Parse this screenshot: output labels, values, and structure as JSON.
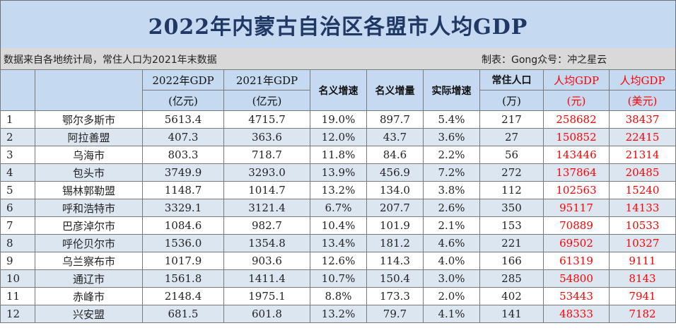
{
  "title": "2022年内蒙古自治区各盟市人均GDP",
  "source_note": "数据来自各地统计局，常住人口为2021年末数据",
  "credit": "制表：Gong众号：冲之星云",
  "headers": {
    "h_gdp2022_a": "2022年GDP",
    "h_gdp2022_b": "(亿元)",
    "h_gdp2021_a": "2021年GDP",
    "h_gdp2021_b": "(亿元)",
    "h_nominal_growth": "名义增速",
    "h_nominal_increase": "名义增量",
    "h_real_growth": "实际增速",
    "h_pop_a": "常住人口",
    "h_pop_b": "(万)",
    "h_pc_cny_a": "人均GDP",
    "h_pc_cny_b": "(元)",
    "h_pc_usd_a": "人均GDP",
    "h_pc_usd_b": "(美元)"
  },
  "rows": [
    [
      "1",
      "鄂尔多斯市",
      "5613.4",
      "4715.7",
      "19.0%",
      "897.7",
      "5.4%",
      "217",
      "258682",
      "38437"
    ],
    [
      "2",
      "阿拉善盟",
      "407.3",
      "363.6",
      "12.0%",
      "43.7",
      "3.6%",
      "27",
      "150852",
      "22415"
    ],
    [
      "3",
      "乌海市",
      "803.3",
      "718.7",
      "11.8%",
      "84.6",
      "2.2%",
      "56",
      "143446",
      "21314"
    ],
    [
      "4",
      "包头市",
      "3749.9",
      "3293.0",
      "13.9%",
      "456.9",
      "7.2%",
      "272",
      "137864",
      "20485"
    ],
    [
      "5",
      "锡林郭勒盟",
      "1148.7",
      "1014.7",
      "13.2%",
      "134.0",
      "3.8%",
      "112",
      "102563",
      "15240"
    ],
    [
      "6",
      "呼和浩特市",
      "3329.1",
      "3121.4",
      "6.7%",
      "207.7",
      "2.6%",
      "350",
      "95117",
      "14133"
    ],
    [
      "7",
      "巴彦淖尔市",
      "1084.6",
      "982.7",
      "10.4%",
      "101.9",
      "2.1%",
      "153",
      "70889",
      "10533"
    ],
    [
      "8",
      "呼伦贝尔市",
      "1536.0",
      "1354.8",
      "13.4%",
      "181.2",
      "4.6%",
      "221",
      "69502",
      "10327"
    ],
    [
      "9",
      "乌兰察布市",
      "1017.9",
      "903.6",
      "12.6%",
      "114.3",
      "4.0%",
      "166",
      "61319",
      "9111"
    ],
    [
      "10",
      "通辽市",
      "1561.8",
      "1411.4",
      "10.7%",
      "150.4",
      "3.0%",
      "285",
      "54800",
      "8143"
    ],
    [
      "11",
      "赤峰市",
      "2148.4",
      "1975.1",
      "8.8%",
      "173.3",
      "2.0%",
      "402",
      "53443",
      "7941"
    ],
    [
      "12",
      "兴安盟",
      "681.5",
      "601.8",
      "13.2%",
      "79.7",
      "4.1%",
      "141",
      "48333",
      "7182"
    ]
  ]
}
